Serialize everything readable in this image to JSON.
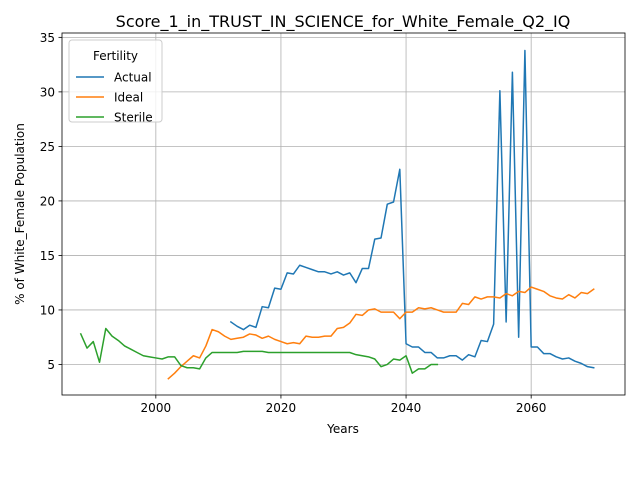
{
  "chart_data": {
    "type": "line",
    "title": "Score_1_in_TRUST_IN_SCIENCE_for_White_Female_Q2_IQ",
    "xlabel": "Years",
    "ylabel": "% of White_Female Population",
    "xlim": [
      1985,
      2075
    ],
    "ylim": [
      2.2,
      35.4
    ],
    "xticks": [
      2000,
      2020,
      2040,
      2060
    ],
    "yticks": [
      5,
      10,
      15,
      20,
      25,
      30,
      35
    ],
    "grid": true,
    "legend": {
      "title": "Fertility",
      "position": "upper-left",
      "entries": [
        "Actual",
        "Ideal",
        "Sterile"
      ]
    },
    "series": [
      {
        "name": "Actual",
        "color": "#1f77b4",
        "x": [
          2012,
          2013,
          2014,
          2015,
          2016,
          2017,
          2018,
          2019,
          2020,
          2021,
          2022,
          2023,
          2024,
          2025,
          2026,
          2027,
          2028,
          2029,
          2030,
          2031,
          2032,
          2033,
          2034,
          2035,
          2036,
          2037,
          2038,
          2039,
          2040,
          2041,
          2042,
          2043,
          2044,
          2045,
          2046,
          2047,
          2048,
          2049,
          2050,
          2051,
          2052,
          2053,
          2054,
          2055,
          2056,
          2057,
          2058,
          2059,
          2060,
          2061,
          2062,
          2063,
          2064,
          2065,
          2066,
          2067,
          2068,
          2069,
          2070
        ],
        "y": [
          8.9,
          8.5,
          8.2,
          8.6,
          8.4,
          10.3,
          10.2,
          12.0,
          11.9,
          13.4,
          13.3,
          14.1,
          13.9,
          13.7,
          13.5,
          13.5,
          13.3,
          13.5,
          13.2,
          13.4,
          12.5,
          13.8,
          13.8,
          16.5,
          16.6,
          19.7,
          19.9,
          22.9,
          6.9,
          6.6,
          6.6,
          6.1,
          6.1,
          5.6,
          5.6,
          5.8,
          5.8,
          5.4,
          5.9,
          5.7,
          7.2,
          7.1,
          8.7,
          30.1,
          8.9,
          31.8,
          7.5,
          33.8,
          6.6,
          6.6,
          6.0,
          6.0,
          5.7,
          5.5,
          5.6,
          5.3,
          5.1,
          4.8,
          4.7
        ]
      },
      {
        "name": "Ideal",
        "color": "#ff7f0e",
        "x": [
          2002,
          2003,
          2004,
          2005,
          2006,
          2007,
          2008,
          2009,
          2010,
          2011,
          2012,
          2013,
          2014,
          2015,
          2016,
          2017,
          2018,
          2019,
          2020,
          2021,
          2022,
          2023,
          2024,
          2025,
          2026,
          2027,
          2028,
          2029,
          2030,
          2031,
          2032,
          2033,
          2034,
          2035,
          2036,
          2037,
          2038,
          2039,
          2040,
          2041,
          2042,
          2043,
          2044,
          2045,
          2046,
          2047,
          2048,
          2049,
          2050,
          2051,
          2052,
          2053,
          2054,
          2055,
          2056,
          2057,
          2058,
          2059,
          2060,
          2061,
          2062,
          2063,
          2064,
          2065,
          2066,
          2067,
          2068,
          2069,
          2070
        ],
        "y": [
          3.7,
          4.2,
          4.8,
          5.3,
          5.8,
          5.6,
          6.7,
          8.2,
          8.0,
          7.6,
          7.3,
          7.4,
          7.5,
          7.8,
          7.7,
          7.4,
          7.6,
          7.3,
          7.1,
          6.9,
          7.0,
          6.9,
          7.6,
          7.5,
          7.5,
          7.6,
          7.6,
          8.3,
          8.4,
          8.8,
          9.6,
          9.5,
          10.0,
          10.1,
          9.8,
          9.8,
          9.8,
          9.2,
          9.8,
          9.8,
          10.2,
          10.1,
          10.2,
          10.0,
          9.8,
          9.8,
          9.8,
          10.6,
          10.5,
          11.2,
          11.0,
          11.2,
          11.2,
          11.1,
          11.5,
          11.3,
          11.7,
          11.6,
          12.1,
          11.9,
          11.7,
          11.3,
          11.1,
          11.0,
          11.4,
          11.1,
          11.6,
          11.5,
          11.9
        ]
      },
      {
        "name": "Sterile",
        "color": "#2ca02c",
        "x": [
          1988,
          1989,
          1990,
          1991,
          1992,
          1993,
          1994,
          1995,
          1996,
          1997,
          1998,
          1999,
          2000,
          2001,
          2002,
          2003,
          2004,
          2005,
          2006,
          2007,
          2008,
          2009,
          2010,
          2011,
          2012,
          2013,
          2014,
          2015,
          2016,
          2017,
          2018,
          2019,
          2020,
          2021,
          2022,
          2023,
          2024,
          2025,
          2026,
          2027,
          2028,
          2029,
          2030,
          2031,
          2032,
          2033,
          2034,
          2035,
          2036,
          2037,
          2038,
          2039,
          2040,
          2041,
          2042,
          2043,
          2044,
          2045
        ],
        "y": [
          7.8,
          6.5,
          7.1,
          5.2,
          8.3,
          7.6,
          7.2,
          6.7,
          6.4,
          6.1,
          5.8,
          5.7,
          5.6,
          5.5,
          5.7,
          5.7,
          4.9,
          4.7,
          4.7,
          4.6,
          5.6,
          6.1,
          6.1,
          6.1,
          6.1,
          6.1,
          6.2,
          6.2,
          6.2,
          6.2,
          6.1,
          6.1,
          6.1,
          6.1,
          6.1,
          6.1,
          6.1,
          6.1,
          6.1,
          6.1,
          6.1,
          6.1,
          6.1,
          6.1,
          5.9,
          5.8,
          5.7,
          5.5,
          4.8,
          5.0,
          5.5,
          5.4,
          5.8,
          4.2,
          4.6,
          4.6,
          5.0,
          5.0
        ]
      }
    ]
  }
}
